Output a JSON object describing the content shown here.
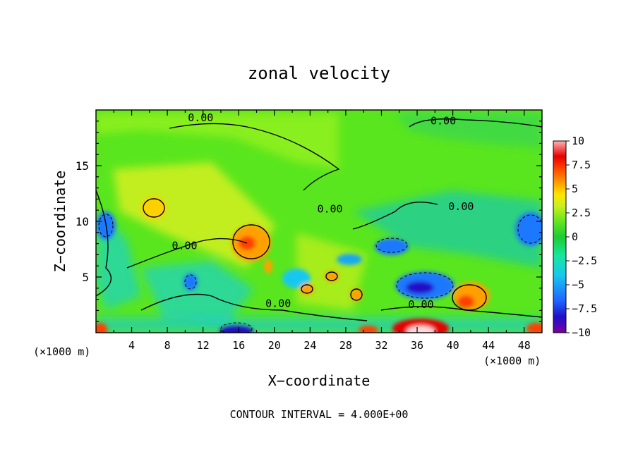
{
  "chart_data": {
    "type": "heatmap",
    "title": "zonal velocity",
    "xlabel": "X−coordinate",
    "ylabel": "Z−coordinate",
    "x_unit_left": "(×1000 m)",
    "x_unit_right": "(×1000 m)",
    "footer": "CONTOUR INTERVAL = 4.000E+00",
    "xlim": [
      0,
      50
    ],
    "ylim": [
      0,
      20
    ],
    "x_ticks": [
      4,
      8,
      12,
      16,
      20,
      24,
      28,
      32,
      36,
      40,
      44,
      48
    ],
    "x_tick_labels": [
      "4",
      "8",
      "12",
      "16",
      "20",
      "24",
      "28",
      "32",
      "36",
      "40",
      "44",
      "48"
    ],
    "y_ticks": [
      5,
      10,
      15
    ],
    "y_tick_labels": [
      "5",
      "10",
      "15"
    ],
    "colorbar": {
      "min": -10,
      "max": 10,
      "ticks": [
        10,
        7.5,
        5,
        2.5,
        0,
        -2.5,
        -5,
        -7.5,
        -10
      ],
      "tick_labels": [
        "10",
        "7.5",
        "5",
        "2.5",
        "0",
        "−2.5",
        "−5",
        "−7.5",
        "−10"
      ],
      "colors": [
        "#7a00a0",
        "#2010c8",
        "#1e64ff",
        "#18c8f0",
        "#18e6a0",
        "#1ecc32",
        "#64e61e",
        "#c8f01e",
        "#ffe600",
        "#ffa000",
        "#ff4000",
        "#e60000",
        "#ffb4b4"
      ]
    },
    "contour_labels": [
      {
        "text": "0.00",
        "x": 10.3,
        "y": 19.0
      },
      {
        "text": "0.00",
        "x": 37.5,
        "y": 18.7
      },
      {
        "text": "0.00",
        "x": 24.8,
        "y": 10.8
      },
      {
        "text": "0.00",
        "x": 39.5,
        "y": 11.0
      },
      {
        "text": "0.00",
        "x": 8.5,
        "y": 7.5
      },
      {
        "text": "0.00",
        "x": 19.0,
        "y": 2.3
      },
      {
        "text": "0.00",
        "x": 35.0,
        "y": 2.2
      }
    ],
    "features": [
      {
        "name": "negative-core-1",
        "x": 36.0,
        "z": 4.0,
        "value": -7.5
      },
      {
        "name": "negative-core-2",
        "x": 48.5,
        "z": 9.5,
        "value": -6
      },
      {
        "name": "negative-core-3",
        "x": 31.5,
        "z": 8.2,
        "value": -6
      },
      {
        "name": "negative-core-4",
        "x": 15.5,
        "z": 0.5,
        "value": -8
      },
      {
        "name": "negative-core-5",
        "x": 0.8,
        "z": 10.0,
        "value": -5
      },
      {
        "name": "negative-core-6",
        "x": 10.5,
        "z": 4.5,
        "value": -5
      },
      {
        "name": "positive-core-1",
        "x": 17.0,
        "z": 8.2,
        "value": 7.5
      },
      {
        "name": "positive-core-2",
        "x": 6.5,
        "z": 11.8,
        "value": 5
      },
      {
        "name": "positive-core-3",
        "x": 42.0,
        "z": 2.5,
        "value": 6
      },
      {
        "name": "positive-core-4",
        "x": 36.5,
        "z": 0.6,
        "value": 10
      },
      {
        "name": "positive-core-5",
        "x": 0.5,
        "z": 0.5,
        "value": 7.5
      },
      {
        "name": "positive-core-6",
        "x": 26.0,
        "z": 5.0,
        "value": 5
      },
      {
        "name": "positive-core-7",
        "x": 22.5,
        "z": 4.2,
        "value": 5
      },
      {
        "name": "positive-core-8",
        "x": 29.5,
        "z": 3.8,
        "value": 5
      },
      {
        "name": "positive-core-9",
        "x": 48.5,
        "z": 0.5,
        "value": 7.5
      }
    ]
  }
}
